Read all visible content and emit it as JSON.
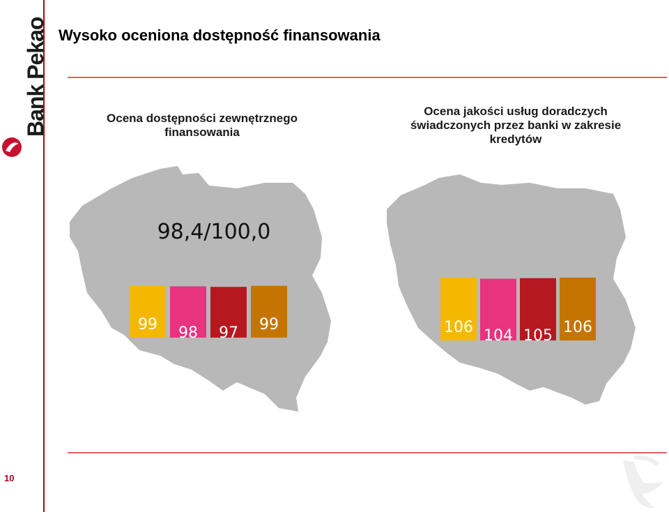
{
  "title": "Wysoko oceniona dostępność finansowania",
  "brand": "Bank Pekao",
  "page_number": "10",
  "colors": {
    "accent_red": "#b3001b",
    "map_gray": "#b8b8b8",
    "bar_colors": [
      "#f5b800",
      "#e8337e",
      "#b5181e",
      "#c47400"
    ]
  },
  "chart_data": [
    {
      "type": "bar",
      "title": "Ocena dostępności zewnętrznego finansowania",
      "annotation": "98,4/100,0",
      "categories": [
        "",
        "",
        "",
        ""
      ],
      "values": [
        99,
        98,
        97,
        99
      ],
      "labels": [
        "99",
        "98",
        "97",
        "99"
      ],
      "ylim": [
        0,
        110
      ]
    },
    {
      "type": "bar",
      "title": "Ocena jakości usług doradczych świadczonych przez banki w zakresie kredytów",
      "categories": [
        "",
        "",
        "",
        ""
      ],
      "values": [
        106,
        104,
        105,
        106
      ],
      "labels": [
        "106",
        "104",
        "105",
        "106"
      ],
      "ylim": [
        0,
        110
      ]
    }
  ]
}
